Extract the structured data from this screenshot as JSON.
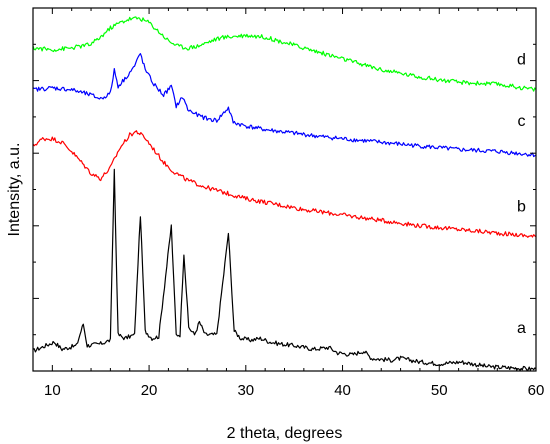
{
  "chart_data": {
    "type": "line",
    "title": "",
    "xlabel": "2 theta, degrees",
    "ylabel": "Intensity, a.u.",
    "xlim": [
      8,
      60
    ],
    "ylim": [
      0,
      10
    ],
    "x_ticks": [
      10,
      20,
      30,
      40,
      50,
      60
    ],
    "x_tick_labels": [
      "10",
      "20",
      "30",
      "40",
      "50",
      "60"
    ],
    "y_ticks_labeled": false,
    "grid": false,
    "legend": "none",
    "series": [
      {
        "name": "a",
        "color": "#000000",
        "x": [
          8,
          10.2,
          11,
          12.5,
          13.2,
          13.6,
          15,
          16,
          16.4,
          16.8,
          17.5,
          18.5,
          19.1,
          19.6,
          20.3,
          21,
          22.3,
          22.8,
          23.2,
          23.6,
          24.1,
          24.7,
          25.2,
          25.8,
          27,
          28.2,
          28.8,
          29.5,
          30.5,
          31.5,
          32.5,
          33.5,
          35,
          37,
          38.6,
          39.5,
          41,
          42.2,
          43,
          45,
          46,
          48,
          50,
          52.3,
          55,
          58,
          60
        ],
        "y": [
          0.55,
          0.8,
          0.6,
          0.7,
          1.3,
          0.7,
          0.75,
          0.85,
          5.55,
          1.0,
          0.9,
          1.0,
          4.3,
          1.1,
          0.9,
          0.95,
          4.0,
          1.0,
          1.0,
          3.25,
          1.2,
          1.0,
          1.35,
          1.0,
          1.0,
          3.8,
          1.1,
          0.9,
          0.85,
          0.9,
          0.8,
          0.75,
          0.7,
          0.6,
          0.65,
          0.5,
          0.45,
          0.55,
          0.35,
          0.3,
          0.35,
          0.25,
          0.2,
          0.25,
          0.12,
          0.08,
          0.05
        ]
      },
      {
        "name": "b",
        "color": "#ff0000",
        "x": [
          8,
          9,
          10,
          11,
          12,
          13,
          14,
          15,
          16,
          17,
          18,
          18.7,
          19.5,
          20.5,
          21.5,
          22.5,
          24,
          26,
          28,
          30,
          33,
          36,
          40,
          44,
          48,
          52,
          56,
          60
        ],
        "y": [
          6.2,
          6.4,
          6.4,
          6.3,
          6.05,
          5.75,
          5.45,
          5.3,
          5.6,
          6.15,
          6.5,
          6.6,
          6.45,
          6.1,
          5.75,
          5.5,
          5.25,
          5.05,
          4.9,
          4.75,
          4.6,
          4.45,
          4.3,
          4.15,
          4.0,
          3.9,
          3.8,
          3.7
        ]
      },
      {
        "name": "c",
        "color": "#0000ff",
        "x": [
          8,
          10,
          12,
          14,
          15,
          16,
          16.4,
          16.8,
          17.5,
          18.5,
          19.1,
          19.6,
          20.5,
          21.5,
          22.3,
          22.8,
          23.5,
          24,
          25,
          26,
          27,
          28.2,
          28.7,
          30,
          32,
          35,
          38,
          40,
          44,
          48,
          52,
          56,
          60
        ],
        "y": [
          7.75,
          7.8,
          7.75,
          7.6,
          7.5,
          7.65,
          8.3,
          7.85,
          8.05,
          8.4,
          8.75,
          8.3,
          7.9,
          7.6,
          7.85,
          7.3,
          7.55,
          7.2,
          7.05,
          6.95,
          6.9,
          7.25,
          6.85,
          6.75,
          6.65,
          6.55,
          6.45,
          6.4,
          6.3,
          6.2,
          6.1,
          6.05,
          5.95
        ]
      },
      {
        "name": "d",
        "color": "#00ff00",
        "x": [
          8,
          10,
          12,
          14,
          15,
          16,
          17,
          18,
          19,
          20,
          21,
          22,
          23,
          24,
          25,
          26,
          27,
          28,
          30,
          32,
          34,
          36,
          38,
          40,
          42,
          44,
          48,
          52,
          56,
          60
        ],
        "y": [
          8.9,
          8.85,
          8.9,
          9.0,
          9.2,
          9.45,
          9.6,
          9.7,
          9.72,
          9.6,
          9.35,
          9.1,
          8.95,
          8.9,
          8.95,
          9.05,
          9.15,
          9.2,
          9.25,
          9.2,
          9.05,
          8.9,
          8.75,
          8.6,
          8.45,
          8.3,
          8.1,
          7.95,
          7.9,
          7.75
        ]
      }
    ],
    "labels": [
      {
        "text": "a",
        "x": 58.5,
        "y": 1.05
      },
      {
        "text": "b",
        "x": 58.5,
        "y": 4.4
      },
      {
        "text": "c",
        "x": 58.5,
        "y": 6.75
      },
      {
        "text": "d",
        "x": 58.5,
        "y": 8.45
      }
    ]
  }
}
